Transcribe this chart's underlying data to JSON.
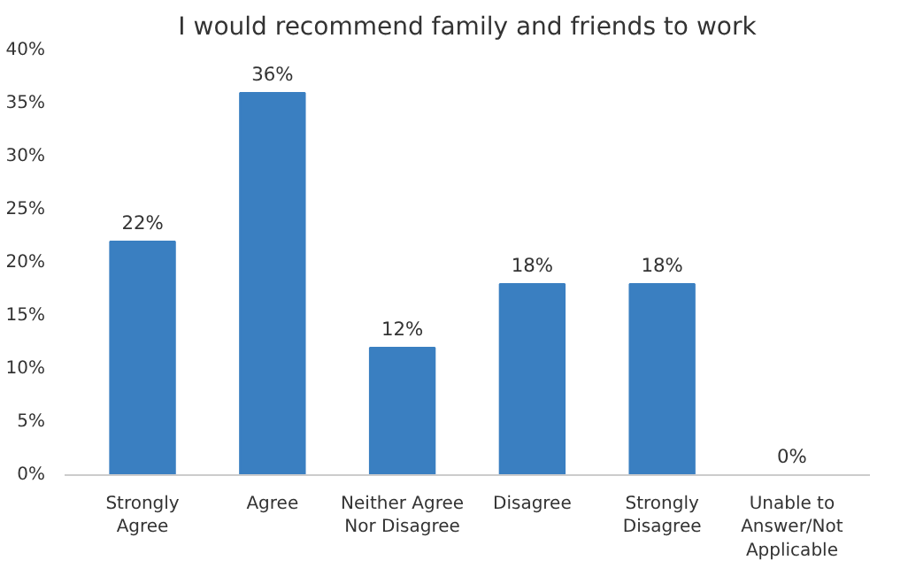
{
  "chart_data": {
    "type": "bar",
    "title": "I would recommend family and friends to work",
    "categories": [
      "Strongly\nAgree",
      "Agree",
      "Neither Agree\nNor Disagree",
      "Disagree",
      "Strongly\nDisagree",
      "Unable to\nAnswer/Not\nApplicable"
    ],
    "values": [
      22,
      36,
      12,
      18,
      18,
      0
    ],
    "value_labels": [
      "22%",
      "36%",
      "12%",
      "18%",
      "18%",
      "0%"
    ],
    "color": "#3a7fc1",
    "ylim": [
      0,
      40
    ],
    "yticks": [
      {
        "value": 0,
        "label": "0%"
      },
      {
        "value": 5,
        "label": "5%"
      },
      {
        "value": 10,
        "label": "10%"
      },
      {
        "value": 15,
        "label": "15%"
      },
      {
        "value": 20,
        "label": "20%"
      },
      {
        "value": 25,
        "label": "25%"
      },
      {
        "value": 30,
        "label": "30%"
      },
      {
        "value": 35,
        "label": "35%"
      },
      {
        "value": 40,
        "label": "40%"
      }
    ],
    "grid": false
  }
}
